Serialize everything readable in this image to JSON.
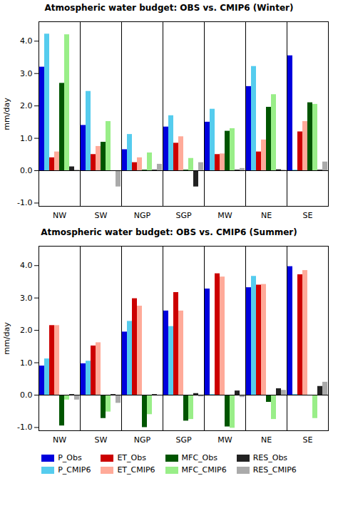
{
  "chart_data": [
    {
      "type": "bar",
      "title": "Atmospheric water budget: OBS vs. CMIP6 (Winter)",
      "ylabel": "mm/day",
      "categories": [
        "NW",
        "SW",
        "NGP",
        "SGP",
        "MW",
        "NE",
        "SE"
      ],
      "ylim": [
        -1.1,
        4.6
      ],
      "yticks": [
        {
          "value": -1.0,
          "label": "-1.0"
        },
        {
          "value": 0.0,
          "label": "0.0"
        },
        {
          "value": 1.0,
          "label": "1.0"
        },
        {
          "value": 2.0,
          "label": "2.0"
        },
        {
          "value": 3.0,
          "label": "3.0"
        },
        {
          "value": 4.0,
          "label": "4.0"
        }
      ],
      "grid": false,
      "series": [
        {
          "name": "P_Obs",
          "color": "#0000dd",
          "values": [
            3.2,
            1.4,
            0.65,
            1.35,
            1.5,
            2.6,
            3.55
          ]
        },
        {
          "name": "P_CMIP6",
          "color": "#55ccee",
          "values": [
            4.22,
            2.45,
            1.12,
            1.7,
            1.9,
            3.22,
            0.02
          ]
        },
        {
          "name": "ET_Obs",
          "color": "#cc0000",
          "values": [
            0.4,
            0.5,
            0.25,
            0.85,
            0.5,
            0.58,
            1.2
          ]
        },
        {
          "name": "ET_CMIP6",
          "color": "#ffaa99",
          "values": [
            0.58,
            0.75,
            0.4,
            1.05,
            0.52,
            0.95,
            1.52
          ]
        },
        {
          "name": "MFC_Obs",
          "color": "#005500",
          "values": [
            2.7,
            0.88,
            0.02,
            0.02,
            1.22,
            1.96,
            2.1
          ]
        },
        {
          "name": "MFC_CMIP6",
          "color": "#99ee88",
          "values": [
            4.2,
            1.52,
            0.55,
            0.38,
            1.3,
            2.35,
            2.05
          ]
        },
        {
          "name": "RES_Obs",
          "color": "#222222",
          "values": [
            0.12,
            -0.02,
            0.02,
            -0.5,
            0.02,
            0.03,
            0.02
          ]
        },
        {
          "name": "RES_CMIP6",
          "color": "#aaaaaa",
          "values": [
            0.02,
            -0.5,
            0.2,
            0.25,
            0.07,
            0.02,
            0.27
          ]
        }
      ]
    },
    {
      "type": "bar",
      "title": "Atmospheric water budget: OBS vs. CMIP6 (Summer)",
      "ylabel": "mm/day",
      "categories": [
        "NW",
        "SW",
        "NGP",
        "SGP",
        "MW",
        "NE",
        "SE"
      ],
      "ylim": [
        -1.1,
        4.6
      ],
      "yticks": [
        {
          "value": -1.0,
          "label": "-1.0"
        },
        {
          "value": 0.0,
          "label": "0.0"
        },
        {
          "value": 1.0,
          "label": "1.0"
        },
        {
          "value": 2.0,
          "label": "2.0"
        },
        {
          "value": 3.0,
          "label": "3.0"
        },
        {
          "value": 4.0,
          "label": "4.0"
        }
      ],
      "grid": false,
      "legend": "bottom",
      "series": [
        {
          "name": "P_Obs",
          "color": "#0000dd",
          "values": [
            0.9,
            0.97,
            1.95,
            2.6,
            3.28,
            3.32,
            3.97
          ]
        },
        {
          "name": "P_CMIP6",
          "color": "#55ccee",
          "values": [
            1.12,
            1.05,
            2.28,
            2.12,
            0.02,
            3.67,
            0.02
          ]
        },
        {
          "name": "ET_Obs",
          "color": "#cc0000",
          "values": [
            2.15,
            1.52,
            2.98,
            3.17,
            3.75,
            3.4,
            3.72
          ]
        },
        {
          "name": "ET_CMIP6",
          "color": "#ffaa99",
          "values": [
            2.15,
            1.62,
            2.75,
            2.6,
            3.65,
            3.42,
            3.85
          ]
        },
        {
          "name": "MFC_Obs",
          "color": "#005500",
          "values": [
            -0.95,
            -0.72,
            -1.0,
            -0.8,
            -0.98,
            -0.22,
            -0.02
          ]
        },
        {
          "name": "MFC_CMIP6",
          "color": "#99ee88",
          "values": [
            -0.15,
            -0.52,
            -0.6,
            -0.75,
            -1.02,
            -0.75,
            -0.72
          ]
        },
        {
          "name": "RES_Obs",
          "color": "#222222",
          "values": [
            0.02,
            0.02,
            0.02,
            0.05,
            0.13,
            0.2,
            0.27
          ]
        },
        {
          "name": "RES_CMIP6",
          "color": "#aaaaaa",
          "values": [
            -0.15,
            -0.25,
            -0.02,
            -0.05,
            -0.07,
            0.15,
            0.4
          ]
        }
      ]
    }
  ]
}
